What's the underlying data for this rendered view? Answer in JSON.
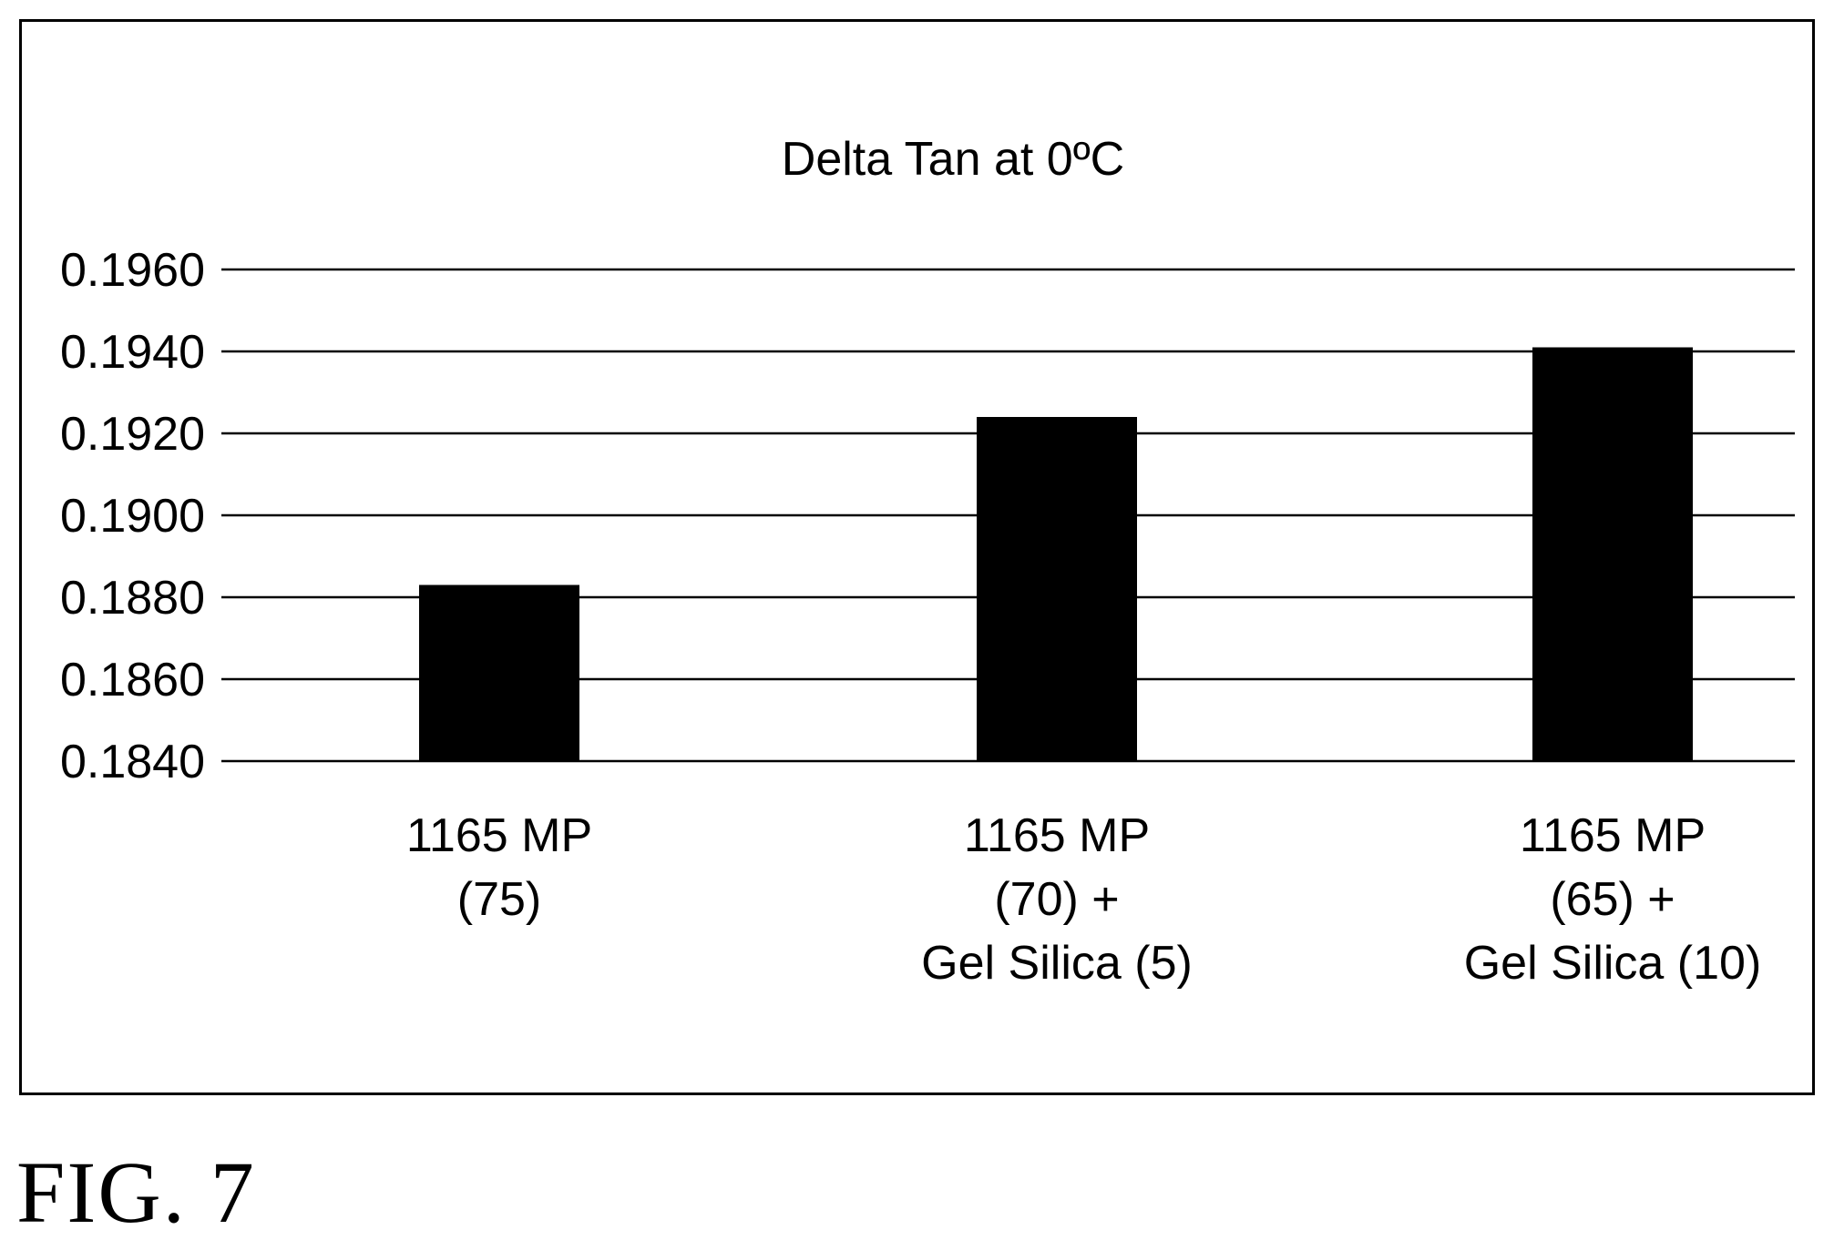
{
  "figure_label": "FIG. 7",
  "chart_data": {
    "type": "bar",
    "title": "Delta Tan at 0ºC",
    "xlabel": "",
    "ylabel": "",
    "categories": [
      [
        "1165 MP",
        "(75)"
      ],
      [
        "1165 MP",
        "(70) +",
        "Gel Silica (5)"
      ],
      [
        "1165 MP",
        "(65) +",
        "Gel Silica (10)"
      ]
    ],
    "values": [
      0.1883,
      0.1924,
      0.1941
    ],
    "ylim": [
      0.184,
      0.196
    ],
    "yticks": [
      "0.1840",
      "0.1860",
      "0.1880",
      "0.1900",
      "0.1920",
      "0.1940",
      "0.1960"
    ],
    "grid": true,
    "legend": "none",
    "colors": {
      "bar": "#000000",
      "grid": "#000000",
      "text": "#000000",
      "background": "#ffffff"
    }
  }
}
